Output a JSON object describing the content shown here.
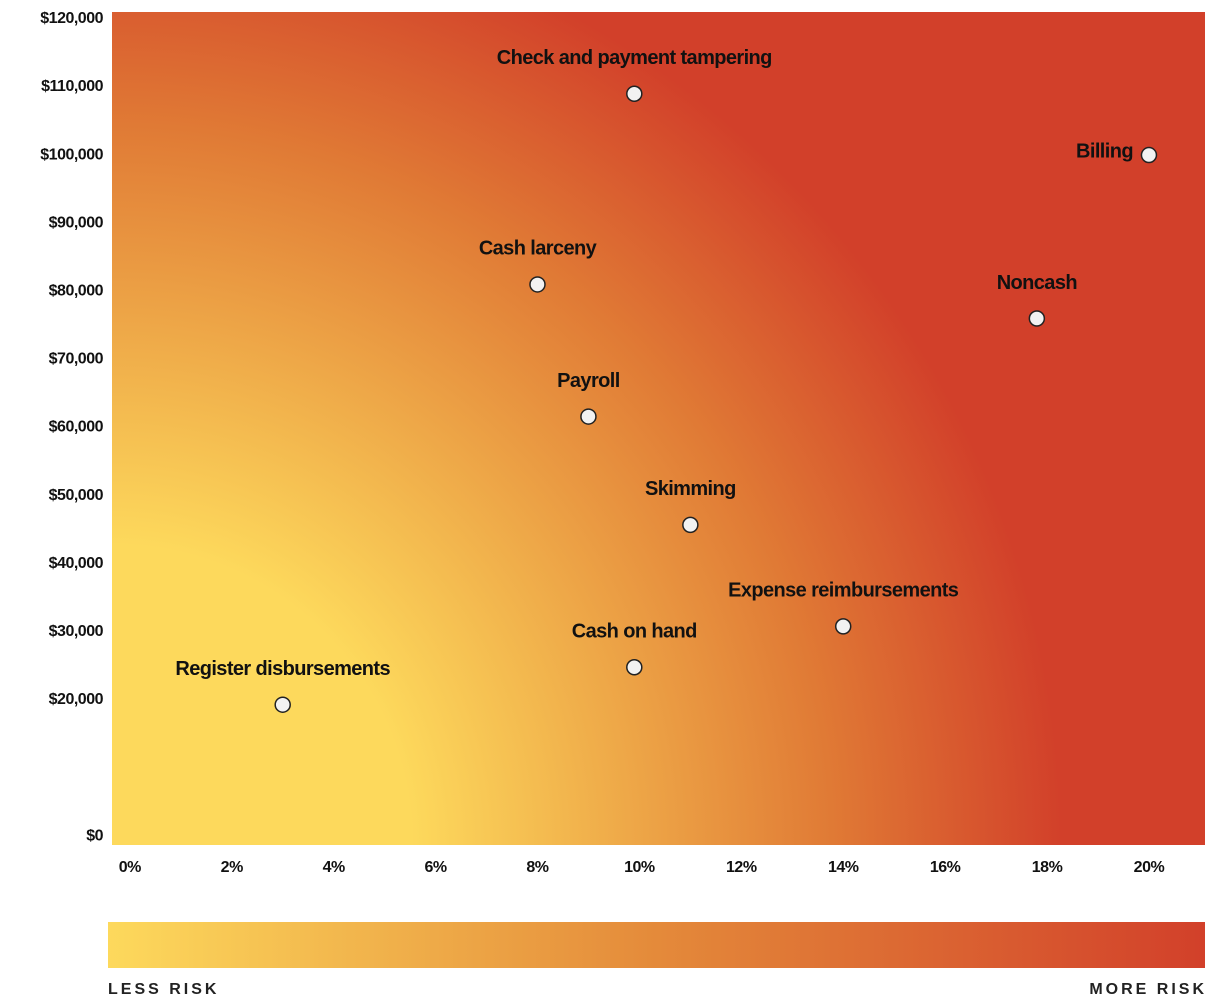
{
  "chart_data": {
    "type": "scatter",
    "point_labels": [
      "Check and payment tampering",
      "Billing",
      "Cash larceny",
      "Noncash",
      "Payroll",
      "Skimming",
      "Expense reimbursements",
      "Cash on hand",
      "Register disbursements"
    ],
    "x": [
      9.9,
      20,
      8,
      17.8,
      9,
      11,
      14,
      9.9,
      3
    ],
    "values": [
      109000,
      100000,
      81000,
      76000,
      61600,
      45700,
      30800,
      24800,
      19300
    ],
    "point_color": "#f2f2f2",
    "xlim": [
      -0.35,
      21.1
    ],
    "ylim": [
      -1300,
      121000
    ],
    "xticks": [
      {
        "value": 0,
        "label": "0%"
      },
      {
        "value": 2,
        "label": "2%"
      },
      {
        "value": 4,
        "label": "4%"
      },
      {
        "value": 6,
        "label": "6%"
      },
      {
        "value": 8,
        "label": "8%"
      },
      {
        "value": 10,
        "label": "10%"
      },
      {
        "value": 12,
        "label": "12%"
      },
      {
        "value": 14,
        "label": "14%"
      },
      {
        "value": 16,
        "label": "16%"
      },
      {
        "value": 18,
        "label": "18%"
      },
      {
        "value": 20,
        "label": "20%"
      }
    ],
    "yticks": [
      {
        "value": 0,
        "label": "$0"
      },
      {
        "value": 20000,
        "label": "$20,000"
      },
      {
        "value": 30000,
        "label": "$30,000"
      },
      {
        "value": 40000,
        "label": "$40,000"
      },
      {
        "value": 50000,
        "label": "$50,000"
      },
      {
        "value": 60000,
        "label": "$60,000"
      },
      {
        "value": 70000,
        "label": "$70,000"
      },
      {
        "value": 80000,
        "label": "$80,000"
      },
      {
        "value": 90000,
        "label": "$90,000"
      },
      {
        "value": 100000,
        "label": "$100,000"
      },
      {
        "value": 110000,
        "label": "$110,000"
      },
      {
        "value": 120000,
        "label": "$120,000"
      }
    ],
    "gradient_colors": [
      "#fdd95c",
      "#d2402a"
    ],
    "scale_labels": [
      "LESS RISK",
      "MORE RISK"
    ]
  }
}
